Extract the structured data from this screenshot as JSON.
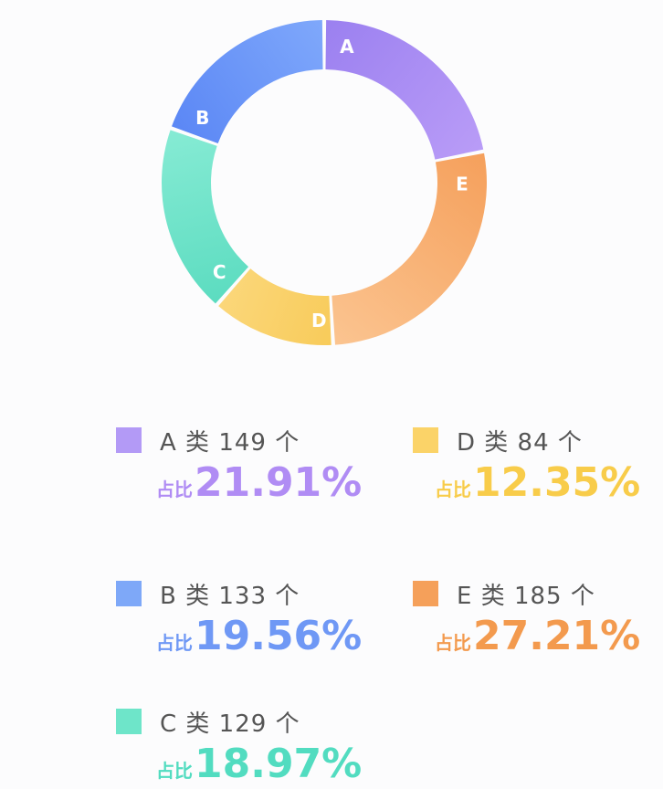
{
  "chart_data": {
    "type": "pie",
    "style": "donut",
    "slices": [
      {
        "label": "A",
        "count": 149,
        "share": 21.91,
        "color_start": "#b99cf7",
        "color_end": "#9b80f0"
      },
      {
        "label": "E",
        "count": 185,
        "share": 27.21,
        "color_start": "#fbc490",
        "color_end": "#f5a05c"
      },
      {
        "label": "D",
        "count": 84,
        "share": 12.35,
        "color_start": "#fbd77a",
        "color_end": "#f8cb5a"
      },
      {
        "label": "C",
        "count": 129,
        "share": 18.97,
        "color_start": "#86ebd4",
        "color_end": "#5cdcc0"
      },
      {
        "label": "B",
        "count": 133,
        "share": 19.56,
        "color_start": "#7fa8fb",
        "color_end": "#5b87f5"
      }
    ]
  },
  "legend": [
    {
      "swatch_color": "#b39af6",
      "text_color": "#b08cf4",
      "text": "A 类 149 个",
      "prefix": "占比",
      "value": "21.91%"
    },
    {
      "swatch_color": "#fbd368",
      "text_color": "#f8cc4a",
      "text": "D 类 84 个",
      "prefix": "占比",
      "value": "12.35%"
    },
    {
      "swatch_color": "#7ea8f8",
      "text_color": "#6f98f5",
      "text": "B 类 133 个",
      "prefix": "占比",
      "value": "19.56%"
    },
    {
      "swatch_color": "#f5a05a",
      "text_color": "#f39a4e",
      "text": "E 类 185 个",
      "prefix": "占比",
      "value": "27.21%"
    },
    {
      "swatch_color": "#6ee5c9",
      "text_color": "#52dcc0",
      "text": "C 类 129 个",
      "prefix": "占比",
      "value": "18.97%"
    }
  ]
}
